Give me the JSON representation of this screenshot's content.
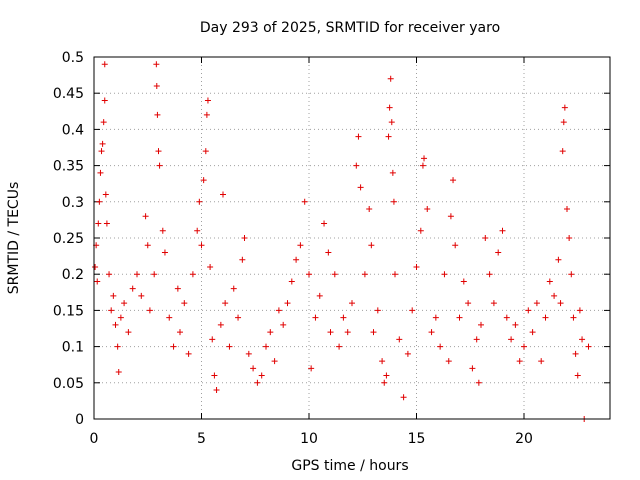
{
  "chart_data": {
    "type": "scatter",
    "title": "Day 293 of 2025, SRMTID for receiver yaro",
    "xlabel": "GPS time / hours",
    "ylabel": "SRMTID / TECUs",
    "xlim": [
      0,
      24
    ],
    "ylim": [
      0,
      0.5
    ],
    "xticks": [
      0,
      5,
      10,
      15,
      20
    ],
    "xtick_labels": [
      "0",
      "5",
      "10",
      "15",
      "20"
    ],
    "yticks": [
      0,
      0.05,
      0.1,
      0.15,
      0.2,
      0.25,
      0.3,
      0.35,
      0.4,
      0.45,
      0.5
    ],
    "ytick_labels": [
      "0",
      "0.05",
      "0.1",
      "0.15",
      "0.2",
      "0.25",
      "0.3",
      "0.35",
      "0.4",
      "0.45",
      "0.5"
    ],
    "grid": true,
    "marker": "plus",
    "color": "#e00000",
    "series": [
      {
        "name": "SRMTID",
        "points": [
          [
            0.05,
            0.21
          ],
          [
            0.1,
            0.24
          ],
          [
            0.15,
            0.19
          ],
          [
            0.2,
            0.27
          ],
          [
            0.25,
            0.3
          ],
          [
            0.3,
            0.34
          ],
          [
            0.35,
            0.37
          ],
          [
            0.4,
            0.38
          ],
          [
            0.45,
            0.41
          ],
          [
            0.5,
            0.49
          ],
          [
            0.5,
            0.44
          ],
          [
            0.55,
            0.31
          ],
          [
            0.6,
            0.27
          ],
          [
            0.7,
            0.2
          ],
          [
            0.8,
            0.15
          ],
          [
            0.9,
            0.17
          ],
          [
            1.0,
            0.13
          ],
          [
            1.1,
            0.1
          ],
          [
            1.15,
            0.065
          ],
          [
            1.25,
            0.14
          ],
          [
            1.4,
            0.16
          ],
          [
            1.6,
            0.12
          ],
          [
            1.8,
            0.18
          ],
          [
            2.0,
            0.2
          ],
          [
            2.2,
            0.17
          ],
          [
            2.4,
            0.28
          ],
          [
            2.5,
            0.24
          ],
          [
            2.6,
            0.15
          ],
          [
            2.8,
            0.2
          ],
          [
            2.9,
            0.49
          ],
          [
            2.92,
            0.46
          ],
          [
            2.95,
            0.42
          ],
          [
            3.0,
            0.37
          ],
          [
            3.05,
            0.35
          ],
          [
            3.2,
            0.26
          ],
          [
            3.3,
            0.23
          ],
          [
            3.5,
            0.14
          ],
          [
            3.7,
            0.1
          ],
          [
            3.9,
            0.18
          ],
          [
            4.0,
            0.12
          ],
          [
            4.2,
            0.16
          ],
          [
            4.4,
            0.09
          ],
          [
            4.6,
            0.2
          ],
          [
            4.8,
            0.26
          ],
          [
            4.9,
            0.3
          ],
          [
            5.0,
            0.24
          ],
          [
            5.1,
            0.33
          ],
          [
            5.2,
            0.37
          ],
          [
            5.25,
            0.42
          ],
          [
            5.3,
            0.44
          ],
          [
            5.4,
            0.21
          ],
          [
            5.5,
            0.11
          ],
          [
            5.6,
            0.06
          ],
          [
            5.7,
            0.04
          ],
          [
            5.9,
            0.13
          ],
          [
            6.0,
            0.31
          ],
          [
            6.1,
            0.16
          ],
          [
            6.3,
            0.1
          ],
          [
            6.5,
            0.18
          ],
          [
            6.7,
            0.14
          ],
          [
            6.9,
            0.22
          ],
          [
            7.0,
            0.25
          ],
          [
            7.2,
            0.09
          ],
          [
            7.4,
            0.07
          ],
          [
            7.6,
            0.05
          ],
          [
            7.8,
            0.06
          ],
          [
            8.0,
            0.1
          ],
          [
            8.2,
            0.12
          ],
          [
            8.4,
            0.08
          ],
          [
            8.6,
            0.15
          ],
          [
            8.8,
            0.13
          ],
          [
            9.0,
            0.16
          ],
          [
            9.2,
            0.19
          ],
          [
            9.4,
            0.22
          ],
          [
            9.6,
            0.24
          ],
          [
            9.8,
            0.3
          ],
          [
            10.0,
            0.2
          ],
          [
            10.1,
            0.07
          ],
          [
            10.3,
            0.14
          ],
          [
            10.5,
            0.17
          ],
          [
            10.7,
            0.27
          ],
          [
            10.9,
            0.23
          ],
          [
            11.0,
            0.12
          ],
          [
            11.2,
            0.2
          ],
          [
            11.4,
            0.1
          ],
          [
            11.6,
            0.14
          ],
          [
            11.8,
            0.12
          ],
          [
            12.0,
            0.16
          ],
          [
            12.2,
            0.35
          ],
          [
            12.3,
            0.39
          ],
          [
            12.4,
            0.32
          ],
          [
            12.6,
            0.2
          ],
          [
            12.8,
            0.29
          ],
          [
            12.9,
            0.24
          ],
          [
            13.0,
            0.12
          ],
          [
            13.2,
            0.15
          ],
          [
            13.4,
            0.08
          ],
          [
            13.5,
            0.05
          ],
          [
            13.6,
            0.06
          ],
          [
            13.7,
            0.39
          ],
          [
            13.75,
            0.43
          ],
          [
            13.8,
            0.47
          ],
          [
            13.85,
            0.41
          ],
          [
            13.9,
            0.34
          ],
          [
            13.95,
            0.3
          ],
          [
            14.0,
            0.2
          ],
          [
            14.2,
            0.11
          ],
          [
            14.4,
            0.03
          ],
          [
            14.6,
            0.09
          ],
          [
            14.8,
            0.15
          ],
          [
            15.0,
            0.21
          ],
          [
            15.2,
            0.26
          ],
          [
            15.3,
            0.35
          ],
          [
            15.35,
            0.36
          ],
          [
            15.5,
            0.29
          ],
          [
            15.7,
            0.12
          ],
          [
            15.9,
            0.14
          ],
          [
            16.1,
            0.1
          ],
          [
            16.3,
            0.2
          ],
          [
            16.5,
            0.08
          ],
          [
            16.6,
            0.28
          ],
          [
            16.7,
            0.33
          ],
          [
            16.8,
            0.24
          ],
          [
            17.0,
            0.14
          ],
          [
            17.2,
            0.19
          ],
          [
            17.4,
            0.16
          ],
          [
            17.6,
            0.07
          ],
          [
            17.8,
            0.11
          ],
          [
            17.9,
            0.05
          ],
          [
            18.0,
            0.13
          ],
          [
            18.2,
            0.25
          ],
          [
            18.4,
            0.2
          ],
          [
            18.6,
            0.16
          ],
          [
            18.8,
            0.23
          ],
          [
            19.0,
            0.26
          ],
          [
            19.2,
            0.14
          ],
          [
            19.4,
            0.11
          ],
          [
            19.6,
            0.13
          ],
          [
            19.8,
            0.08
          ],
          [
            20.0,
            0.1
          ],
          [
            20.2,
            0.15
          ],
          [
            20.4,
            0.12
          ],
          [
            20.6,
            0.16
          ],
          [
            20.8,
            0.08
          ],
          [
            21.0,
            0.14
          ],
          [
            21.2,
            0.19
          ],
          [
            21.4,
            0.17
          ],
          [
            21.6,
            0.22
          ],
          [
            21.7,
            0.16
          ],
          [
            21.8,
            0.37
          ],
          [
            21.85,
            0.41
          ],
          [
            21.9,
            0.43
          ],
          [
            22.0,
            0.29
          ],
          [
            22.1,
            0.25
          ],
          [
            22.2,
            0.2
          ],
          [
            22.3,
            0.14
          ],
          [
            22.4,
            0.09
          ],
          [
            22.5,
            0.06
          ],
          [
            22.6,
            0.15
          ],
          [
            22.7,
            0.11
          ],
          [
            23.0,
            0.1
          ],
          [
            22.8,
            0.0
          ]
        ]
      }
    ]
  }
}
